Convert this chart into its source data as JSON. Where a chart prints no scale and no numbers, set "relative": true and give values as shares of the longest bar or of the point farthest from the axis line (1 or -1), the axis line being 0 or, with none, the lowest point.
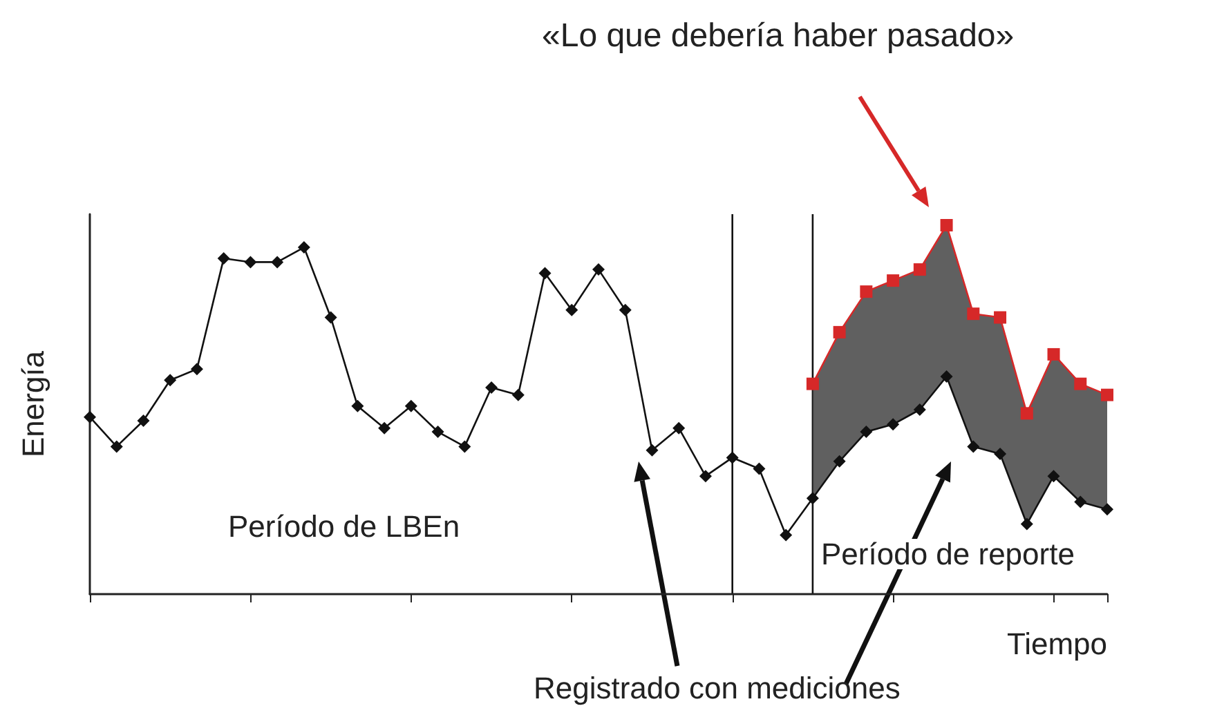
{
  "chart_data": {
    "type": "line",
    "relative": true,
    "xlabel": "Tiempo",
    "ylabel": "Energía",
    "categories": [
      null,
      null,
      null,
      null,
      null,
      null,
      null,
      null,
      null,
      null,
      null,
      null,
      null,
      null,
      null,
      null,
      null,
      null,
      null,
      null,
      null,
      null,
      null,
      null,
      null,
      null,
      null,
      null,
      null,
      null,
      null,
      null,
      null,
      null,
      null,
      null,
      null,
      null,
      null
    ],
    "series": [
      {
        "color": "#111111",
        "marker": "diamond",
        "values": [
          0.48,
          0.4,
          0.47,
          0.58,
          0.61,
          0.91,
          0.9,
          0.9,
          0.94,
          0.75,
          0.51,
          0.45,
          0.51,
          0.44,
          0.4,
          0.56,
          0.54,
          0.87,
          0.77,
          0.88,
          0.77,
          0.39,
          0.45,
          0.32,
          0.37,
          0.34,
          0.16,
          0.26,
          0.36,
          0.44,
          0.46,
          0.5,
          0.59,
          0.4,
          0.38,
          0.19,
          0.32,
          0.25,
          0.23
        ]
      },
      {
        "color": "#d62828",
        "marker": "square",
        "values": [
          null,
          null,
          null,
          null,
          null,
          null,
          null,
          null,
          null,
          null,
          null,
          null,
          null,
          null,
          null,
          null,
          null,
          null,
          null,
          null,
          null,
          null,
          null,
          null,
          null,
          null,
          null,
          0.57,
          0.71,
          0.82,
          0.85,
          0.88,
          1,
          0.76,
          0.75,
          0.49,
          0.65,
          0.57,
          0.54
        ],
        "lower": [
          null,
          null,
          null,
          null,
          null,
          null,
          null,
          null,
          null,
          null,
          null,
          null,
          null,
          null,
          null,
          null,
          null,
          null,
          null,
          null,
          null,
          null,
          null,
          null,
          null,
          null,
          null,
          0.26,
          0.36,
          0.44,
          0.46,
          0.5,
          0.59,
          0.4,
          0.38,
          0.19,
          0.32,
          0.25,
          0.23
        ],
        "upper": [
          null,
          null,
          null,
          null,
          null,
          null,
          null,
          null,
          null,
          null,
          null,
          null,
          null,
          null,
          null,
          null,
          null,
          null,
          null,
          null,
          null,
          null,
          null,
          null,
          null,
          null,
          null,
          0.57,
          0.71,
          0.82,
          0.85,
          0.88,
          1,
          0.76,
          0.75,
          0.49,
          0.65,
          0.57,
          0.54
        ]
      }
    ],
    "annotations": [
      "«Lo que debería haber pasado»",
      "Período de LBEn",
      "Período de reporte",
      "Registrado con mediciones"
    ],
    "grid": false,
    "line_style": "solid"
  }
}
